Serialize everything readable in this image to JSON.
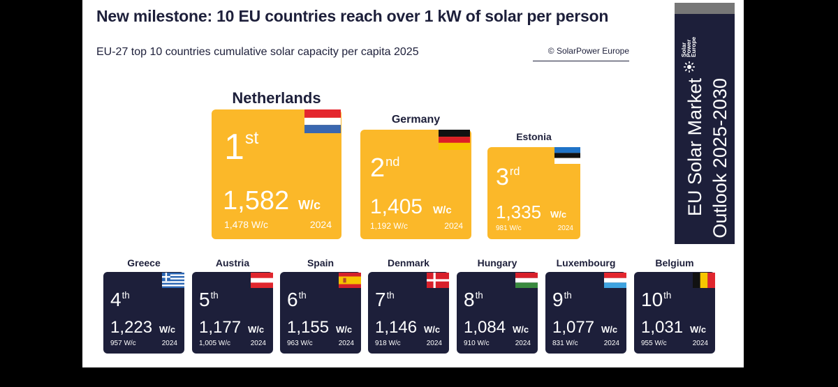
{
  "title": "New milestone: 10 EU countries reach over 1 kW of solar per person",
  "subtitle": "EU-27 top 10 countries cumulative solar capacity per capita 2025",
  "source": "© SolarPower Europe",
  "side_banner": {
    "logo_text": [
      "Solar",
      "Power",
      "Europe"
    ],
    "line1": "EU Solar Market",
    "line2": "Outlook 2025-2030"
  },
  "colors": {
    "podium": "#fbb829",
    "card": "#1d1f3a",
    "text": "#1d1f3a",
    "white": "#ffffff"
  },
  "chart_data": {
    "type": "table",
    "title": "EU-27 top 10 countries cumulative solar capacity per capita 2025",
    "unit": "W/c",
    "previous_year_label": "2024",
    "entries": [
      {
        "rank": 1,
        "ordinal": "1",
        "suffix": "st",
        "country": "Netherlands",
        "value": 1582,
        "value_label": "1,582",
        "prev_value": 1478,
        "prev_label": "1,478 W/c",
        "flag": "flag-netherlands"
      },
      {
        "rank": 2,
        "ordinal": "2",
        "suffix": "nd",
        "country": "Germany",
        "value": 1405,
        "value_label": "1,405",
        "prev_value": 1192,
        "prev_label": "1,192 W/c",
        "flag": "flag-germany"
      },
      {
        "rank": 3,
        "ordinal": "3",
        "suffix": "rd",
        "country": "Estonia",
        "value": 1335,
        "value_label": "1,335",
        "prev_value": 981,
        "prev_label": "981 W/c",
        "flag": "flag-estonia"
      },
      {
        "rank": 4,
        "ordinal": "4",
        "suffix": "th",
        "country": "Greece",
        "value": 1223,
        "value_label": "1,223",
        "prev_value": 957,
        "prev_label": "957 W/c",
        "flag": "flag-greece"
      },
      {
        "rank": 5,
        "ordinal": "5",
        "suffix": "th",
        "country": "Austria",
        "value": 1177,
        "value_label": "1,177",
        "prev_value": 1005,
        "prev_label": "1,005 W/c",
        "flag": "flag-austria"
      },
      {
        "rank": 6,
        "ordinal": "6",
        "suffix": "th",
        "country": "Spain",
        "value": 1155,
        "value_label": "1,155",
        "prev_value": 963,
        "prev_label": "963 W/c",
        "flag": "flag-spain"
      },
      {
        "rank": 7,
        "ordinal": "7",
        "suffix": "th",
        "country": "Denmark",
        "value": 1146,
        "value_label": "1,146",
        "prev_value": 918,
        "prev_label": "918 W/c",
        "flag": "flag-denmark"
      },
      {
        "rank": 8,
        "ordinal": "8",
        "suffix": "th",
        "country": "Hungary",
        "value": 1084,
        "value_label": "1,084",
        "prev_value": 910,
        "prev_label": "910 W/c",
        "flag": "flag-hungary"
      },
      {
        "rank": 9,
        "ordinal": "9",
        "suffix": "th",
        "country": "Luxembourg",
        "value": 1077,
        "value_label": "1,077",
        "prev_value": 831,
        "prev_label": "831 W/c",
        "flag": "flag-luxembourg"
      },
      {
        "rank": 10,
        "ordinal": "10",
        "suffix": "th",
        "country": "Belgium",
        "value": 1031,
        "value_label": "1,031",
        "prev_value": 955,
        "prev_label": "955 W/c",
        "flag": "flag-belgium"
      }
    ]
  }
}
